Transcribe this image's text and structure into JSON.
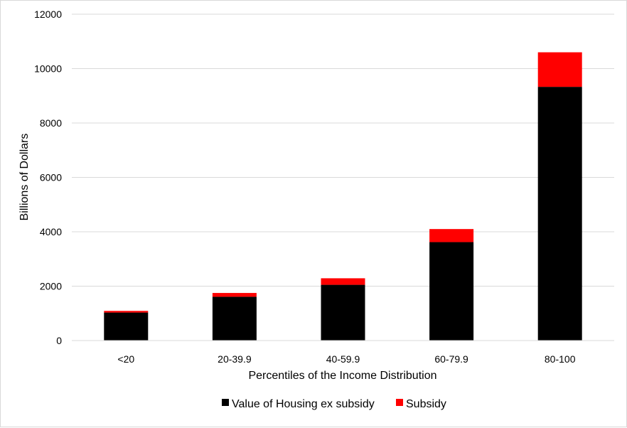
{
  "chart_data": {
    "type": "bar",
    "stacked": true,
    "categories": [
      "<20",
      "20-39.9",
      "40-59.9",
      "60-79.9",
      "80-100"
    ],
    "series": [
      {
        "name": "Value of Housing ex subsidy",
        "color": "#000000",
        "values": [
          1030,
          1610,
          2050,
          3620,
          9330
        ]
      },
      {
        "name": "Subsidy",
        "color": "#ff0000",
        "values": [
          60,
          140,
          240,
          480,
          1270
        ]
      }
    ],
    "title": "",
    "xlabel": "Percentiles of the Income Distribution",
    "ylabel": "Billions of Dollars",
    "ylim": [
      0,
      12000
    ],
    "yticks": [
      0,
      2000,
      4000,
      6000,
      8000,
      10000,
      12000
    ],
    "grid": true,
    "legend": "bottom"
  }
}
